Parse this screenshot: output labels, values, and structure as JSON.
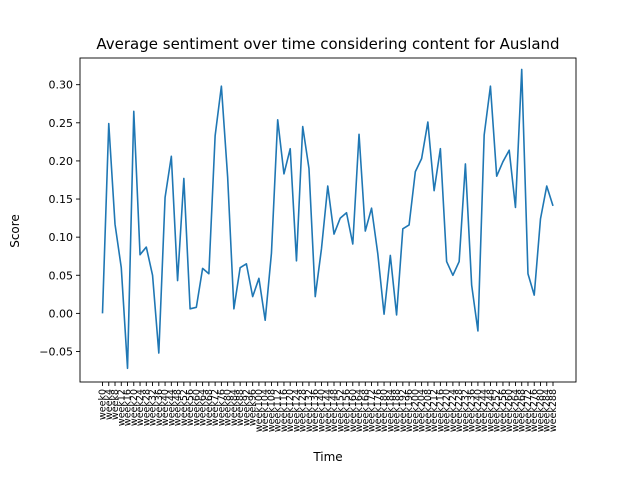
{
  "chart_data": {
    "type": "line",
    "title": "Average sentiment over time considering content for Ausland",
    "xlabel": "Time",
    "ylabel": "Score",
    "ylim": [
      -0.09,
      0.335
    ],
    "yticks": [
      -0.05,
      0.0,
      0.05,
      0.1,
      0.15,
      0.2,
      0.25,
      0.3
    ],
    "ytick_labels": [
      "−0.05",
      "0.00",
      "0.05",
      "0.10",
      "0.15",
      "0.20",
      "0.25",
      "0.30"
    ],
    "grid": false,
    "line_color": "#1f77b4",
    "categories": [
      "week0",
      "week4",
      "week8",
      "week12",
      "week16",
      "week20",
      "week24",
      "week28",
      "week32",
      "week36",
      "week40",
      "week44",
      "week48",
      "week52",
      "week56",
      "week60",
      "week64",
      "week68",
      "week72",
      "week76",
      "week80",
      "week84",
      "week88",
      "week92",
      "week96",
      "week100",
      "week104",
      "week108",
      "week112",
      "week116",
      "week120",
      "week124",
      "week128",
      "week132",
      "week136",
      "week140",
      "week144",
      "week148",
      "week152",
      "week156",
      "week160",
      "week164",
      "week168",
      "week172",
      "week176",
      "week180",
      "week184",
      "week188",
      "week192",
      "week196",
      "week200",
      "week204",
      "week208",
      "week212",
      "week216",
      "week220",
      "week224",
      "week228",
      "week232",
      "week236",
      "week240",
      "week244",
      "week248",
      "week252",
      "week256",
      "week260",
      "week264",
      "week268",
      "week272",
      "week276",
      "week280",
      "week284",
      "week288"
    ],
    "series": [
      {
        "values": [
          0.0,
          0.249,
          0.117,
          0.06,
          -0.072,
          0.265,
          0.077,
          0.087,
          0.05,
          -0.052,
          0.152,
          0.206,
          0.043,
          0.177,
          0.006,
          0.008,
          0.059,
          0.052,
          0.233,
          0.298,
          0.179,
          0.006,
          0.06,
          0.065,
          0.022,
          0.046,
          -0.009,
          0.079,
          0.254,
          0.183,
          0.216,
          0.069,
          0.245,
          0.19,
          0.022,
          0.085,
          0.167,
          0.104,
          0.125,
          0.132,
          0.091,
          0.235,
          0.108,
          0.138,
          0.078,
          -0.001,
          0.076,
          -0.002,
          0.111,
          0.116,
          0.186,
          0.203,
          0.251,
          0.161,
          0.216,
          0.068,
          0.05,
          0.068,
          0.196,
          0.037,
          -0.023,
          0.234,
          0.298,
          0.18,
          0.199,
          0.214,
          0.139,
          0.32,
          0.052,
          0.024,
          0.124,
          0.167,
          0.141
        ]
      }
    ]
  }
}
